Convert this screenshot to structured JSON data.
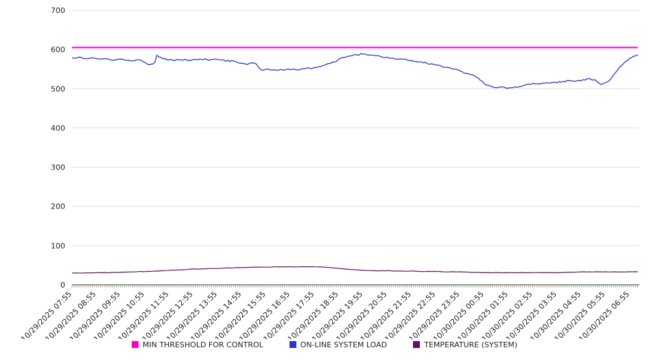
{
  "chart_data": {
    "type": "line",
    "title": "",
    "xlabel": "",
    "ylabel": "",
    "ylim": [
      0,
      700
    ],
    "y_ticks": [
      0,
      100,
      200,
      300,
      400,
      500,
      600,
      700
    ],
    "x_domain": [
      0,
      23.4
    ],
    "grid": "horizontal",
    "legend_position": "bottom",
    "x_labels": [
      "10/29/2025 07:55",
      "10/29/2025 08:55",
      "10/29/2025 09:55",
      "10/29/2025 10:55",
      "10/29/2025 11:55",
      "10/29/2025 12:55",
      "10/29/2025 13:55",
      "10/29/2025 14:55",
      "10/29/2025 15:55",
      "10/29/2025 16:55",
      "10/29/2025 17:55",
      "10/29/2025 18:55",
      "10/29/2025 19:55",
      "10/29/2025 20:55",
      "10/29/2025 21:55",
      "10/29/2025 22:55",
      "10/29/2025 23:55",
      "10/30/2025 00:55",
      "10/30/2025 01:55",
      "10/30/2025 02:55",
      "10/30/2025 03:55",
      "10/30/2025 04:55",
      "10/30/2025 05:55",
      "10/30/2025 06:55"
    ],
    "series": [
      {
        "name": "MIN THRESHOLD FOR CONTROL",
        "color": "#ff00cc",
        "stroke_width": 2,
        "noise": 0,
        "points": [
          [
            0,
            605
          ],
          [
            23.4,
            605
          ]
        ]
      },
      {
        "name": "ON-LINE SYSTEM LOAD",
        "color": "#2a38c2",
        "stroke_width": 1.3,
        "noise": 1.8,
        "points": [
          [
            0,
            578
          ],
          [
            0.3,
            581
          ],
          [
            0.6,
            577
          ],
          [
            0.9,
            578
          ],
          [
            1.2,
            575
          ],
          [
            1.5,
            576
          ],
          [
            1.8,
            573
          ],
          [
            2.1,
            575
          ],
          [
            2.4,
            571
          ],
          [
            2.7,
            574
          ],
          [
            3.0,
            569
          ],
          [
            3.2,
            560
          ],
          [
            3.4,
            566
          ],
          [
            3.5,
            585
          ],
          [
            3.7,
            578
          ],
          [
            3.9,
            575
          ],
          [
            4.2,
            572
          ],
          [
            4.5,
            575
          ],
          [
            4.8,
            573
          ],
          [
            5.1,
            575
          ],
          [
            5.4,
            576
          ],
          [
            5.7,
            574
          ],
          [
            6.0,
            575
          ],
          [
            6.3,
            572
          ],
          [
            6.6,
            570
          ],
          [
            6.9,
            567
          ],
          [
            7.2,
            562
          ],
          [
            7.4,
            567
          ],
          [
            7.6,
            563
          ],
          [
            7.8,
            547
          ],
          [
            8.1,
            549
          ],
          [
            8.4,
            546
          ],
          [
            8.7,
            548
          ],
          [
            9.0,
            549
          ],
          [
            9.3,
            548
          ],
          [
            9.6,
            551
          ],
          [
            9.9,
            553
          ],
          [
            10.2,
            556
          ],
          [
            10.5,
            561
          ],
          [
            10.8,
            568
          ],
          [
            11.0,
            575
          ],
          [
            11.3,
            582
          ],
          [
            11.6,
            586
          ],
          [
            11.9,
            588
          ],
          [
            12.2,
            587
          ],
          [
            12.5,
            584
          ],
          [
            12.8,
            582
          ],
          [
            13.1,
            578
          ],
          [
            13.4,
            576
          ],
          [
            13.7,
            576
          ],
          [
            14.0,
            572
          ],
          [
            14.3,
            568
          ],
          [
            14.6,
            566
          ],
          [
            14.9,
            562
          ],
          [
            15.2,
            558
          ],
          [
            15.5,
            553
          ],
          [
            15.8,
            549
          ],
          [
            16.1,
            543
          ],
          [
            16.4,
            537
          ],
          [
            16.7,
            530
          ],
          [
            17.0,
            513
          ],
          [
            17.2,
            507
          ],
          [
            17.5,
            504
          ],
          [
            17.8,
            503
          ],
          [
            18.1,
            503
          ],
          [
            18.4,
            505
          ],
          [
            18.7,
            509
          ],
          [
            19.0,
            514
          ],
          [
            19.3,
            513
          ],
          [
            19.6,
            516
          ],
          [
            19.9,
            515
          ],
          [
            20.2,
            518
          ],
          [
            20.5,
            520
          ],
          [
            20.8,
            519
          ],
          [
            21.1,
            523
          ],
          [
            21.4,
            525
          ],
          [
            21.6,
            521
          ],
          [
            21.8,
            509
          ],
          [
            22.0,
            514
          ],
          [
            22.2,
            524
          ],
          [
            22.4,
            540
          ],
          [
            22.6,
            556
          ],
          [
            22.8,
            568
          ],
          [
            23.0,
            578
          ],
          [
            23.2,
            585
          ],
          [
            23.4,
            587
          ]
        ]
      },
      {
        "name": "TEMPERATURE (SYSTEM)",
        "color": "#640f62",
        "stroke_width": 1.2,
        "noise": 0.4,
        "points": [
          [
            0,
            30
          ],
          [
            0.5,
            30
          ],
          [
            1,
            31
          ],
          [
            1.5,
            31
          ],
          [
            2,
            32
          ],
          [
            2.5,
            33
          ],
          [
            3,
            34
          ],
          [
            3.5,
            35
          ],
          [
            4,
            37
          ],
          [
            4.5,
            38
          ],
          [
            5,
            40
          ],
          [
            5.5,
            41
          ],
          [
            6,
            42
          ],
          [
            6.5,
            43
          ],
          [
            7,
            44
          ],
          [
            7.5,
            45
          ],
          [
            8,
            45
          ],
          [
            8.5,
            46
          ],
          [
            9,
            46
          ],
          [
            9.5,
            46
          ],
          [
            10,
            46
          ],
          [
            10.5,
            45
          ],
          [
            11,
            42
          ],
          [
            11.5,
            39
          ],
          [
            12,
            37
          ],
          [
            12.5,
            36
          ],
          [
            13,
            36
          ],
          [
            13.5,
            35
          ],
          [
            14,
            35
          ],
          [
            14.5,
            34
          ],
          [
            15,
            34
          ],
          [
            15.5,
            33
          ],
          [
            16,
            33
          ],
          [
            16.5,
            32
          ],
          [
            17,
            31
          ],
          [
            17.5,
            31
          ],
          [
            18,
            31
          ],
          [
            18.5,
            31
          ],
          [
            19,
            31
          ],
          [
            19.5,
            31
          ],
          [
            20,
            31
          ],
          [
            20.5,
            32
          ],
          [
            21,
            33
          ],
          [
            21.5,
            33
          ],
          [
            22,
            33
          ],
          [
            22.5,
            33
          ],
          [
            23,
            33
          ],
          [
            23.4,
            33
          ]
        ]
      }
    ]
  },
  "colors": {
    "grid": "#dddddd",
    "axis": "#333333",
    "tick": "#888888",
    "label_text": "#222222"
  }
}
